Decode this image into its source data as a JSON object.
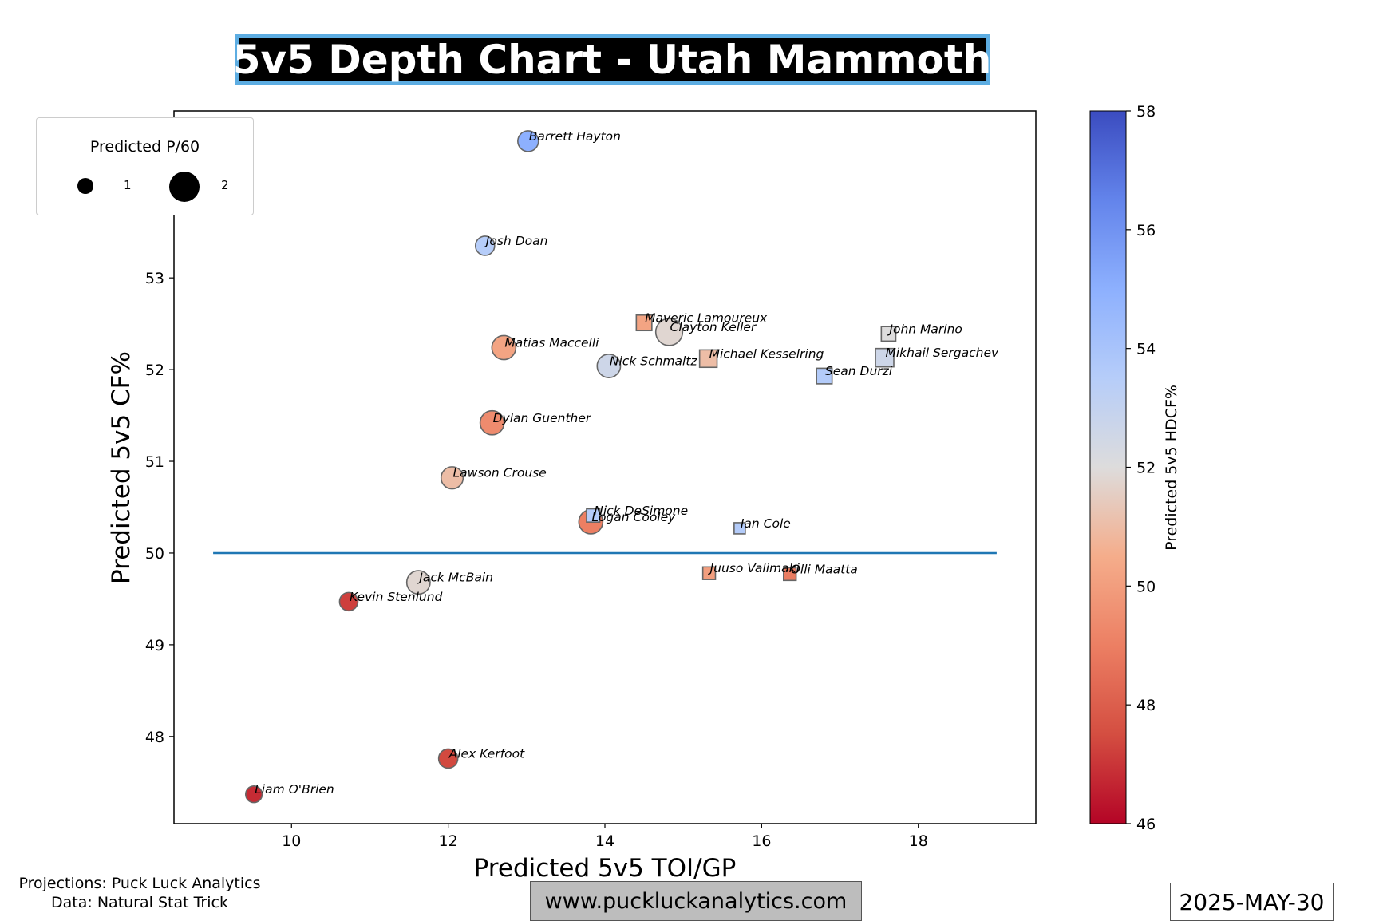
{
  "header": {
    "title": "5v5 Depth Chart - Utah Mammoth"
  },
  "footer": {
    "source_line1": "Projections: Puck Luck Analytics",
    "source_line2": "Data: Natural Stat Trick",
    "website": "www.puckluckanalytics.com",
    "date": "2025-MAY-30"
  },
  "legend": {
    "title": "Predicted P/60",
    "items": [
      {
        "label": "1",
        "p60": 1
      },
      {
        "label": "2",
        "p60": 2
      }
    ]
  },
  "colorbar": {
    "label": "Predicted 5v5 HDCF%",
    "min": 46,
    "max": 58,
    "ticks": [
      "46",
      "48",
      "50",
      "52",
      "54",
      "56",
      "58"
    ],
    "colormap": "coolwarm_r",
    "color_low": "#b40426",
    "color_mid": "#dddcdc",
    "color_high": "#3b4cc0"
  },
  "chart_data": {
    "type": "scatter",
    "title": "5v5 Depth Chart - Utah Mammoth",
    "xlabel": "Predicted 5v5 TOI/GP",
    "ylabel": "Predicted 5v5 CF%",
    "xlim": [
      8.5,
      19.5
    ],
    "ylim": [
      47.05,
      54.82
    ],
    "xticks": [
      10,
      12,
      14,
      16,
      18
    ],
    "yticks": [
      48,
      49,
      50,
      51,
      52,
      53,
      54
    ],
    "reference_line": {
      "y": 50,
      "x_from": 9,
      "x_to": 19,
      "color": "#1f77b4"
    },
    "marker_legend": "circle = forward, square = defense",
    "series": [
      {
        "marker": "circle",
        "points": [
          {
            "label": "Barrett Hayton",
            "x": 13.02,
            "y": 54.49,
            "hdcf": 55.0,
            "p60": 1.2
          },
          {
            "label": "Josh Doan",
            "x": 12.47,
            "y": 53.35,
            "hdcf": 53.5,
            "p60": 1.0
          },
          {
            "label": "Clayton Keller",
            "x": 14.82,
            "y": 52.41,
            "hdcf": 51.8,
            "p60": 2.2
          },
          {
            "label": "Matias Maccelli",
            "x": 12.71,
            "y": 52.24,
            "hdcf": 50.2,
            "p60": 1.7
          },
          {
            "label": "Nick Schmaltz",
            "x": 14.05,
            "y": 52.04,
            "hdcf": 52.6,
            "p60": 1.6
          },
          {
            "label": "Dylan Guenther",
            "x": 12.56,
            "y": 51.42,
            "hdcf": 49.4,
            "p60": 1.7
          },
          {
            "label": "Lawson Crouse",
            "x": 12.05,
            "y": 50.82,
            "hdcf": 51.0,
            "p60": 1.4
          },
          {
            "label": "Logan Cooley",
            "x": 13.82,
            "y": 50.34,
            "hdcf": 49.0,
            "p60": 1.7
          },
          {
            "label": "Jack McBain",
            "x": 11.62,
            "y": 49.68,
            "hdcf": 51.8,
            "p60": 1.6
          },
          {
            "label": "Kevin Stenlund",
            "x": 10.73,
            "y": 49.47,
            "hdcf": 47.2,
            "p60": 0.9
          },
          {
            "label": "Alex Kerfoot",
            "x": 12.0,
            "y": 47.76,
            "hdcf": 47.4,
            "p60": 1.0
          },
          {
            "label": "Liam O'Brien",
            "x": 9.52,
            "y": 47.37,
            "hdcf": 46.8,
            "p60": 0.7
          }
        ]
      },
      {
        "marker": "square",
        "points": [
          {
            "label": "Maveric Lamoureux",
            "x": 14.5,
            "y": 52.51,
            "hdcf": 50.2,
            "p60": 0.6
          },
          {
            "label": "John Marino",
            "x": 17.62,
            "y": 52.39,
            "hdcf": 52.0,
            "p60": 0.5
          },
          {
            "label": "Mikhail Sergachev",
            "x": 17.57,
            "y": 52.13,
            "hdcf": 52.6,
            "p60": 0.9
          },
          {
            "label": "Michael Kesselring",
            "x": 15.32,
            "y": 52.12,
            "hdcf": 51.0,
            "p60": 0.8
          },
          {
            "label": "Sean Durzi",
            "x": 16.8,
            "y": 51.93,
            "hdcf": 53.6,
            "p60": 0.6
          },
          {
            "label": "Nick DeSimone",
            "x": 13.85,
            "y": 50.41,
            "hdcf": 53.5,
            "p60": 0.4
          },
          {
            "label": "Ian Cole",
            "x": 15.72,
            "y": 50.27,
            "hdcf": 53.6,
            "p60": 0.25
          },
          {
            "label": "Juuso Valimaki",
            "x": 15.33,
            "y": 49.78,
            "hdcf": 50.0,
            "p60": 0.35
          },
          {
            "label": "Olli Maatta",
            "x": 16.36,
            "y": 49.77,
            "hdcf": 48.9,
            "p60": 0.35
          }
        ]
      }
    ]
  }
}
